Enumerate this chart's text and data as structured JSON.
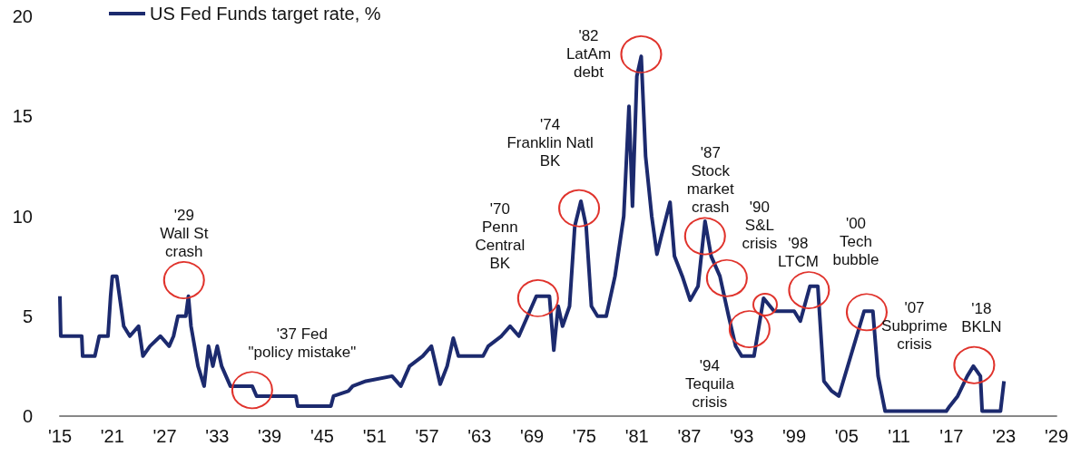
{
  "chart_data": {
    "type": "line",
    "legend": "top left",
    "grid": false,
    "marker": "none",
    "line_style": "solid",
    "xlim": [
      1915,
      2029
    ],
    "xticks": [
      {
        "value": 1915,
        "label": "'15"
      },
      {
        "value": 1921,
        "label": "'21"
      },
      {
        "value": 1927,
        "label": "'27"
      },
      {
        "value": 1933,
        "label": "'33"
      },
      {
        "value": 1939,
        "label": "'39"
      },
      {
        "value": 1945,
        "label": "'45"
      },
      {
        "value": 1951,
        "label": "'51"
      },
      {
        "value": 1957,
        "label": "'57"
      },
      {
        "value": 1963,
        "label": "'63"
      },
      {
        "value": 1969,
        "label": "'69"
      },
      {
        "value": 1975,
        "label": "'75"
      },
      {
        "value": 1981,
        "label": "'81"
      },
      {
        "value": 1987,
        "label": "'87"
      },
      {
        "value": 1993,
        "label": "'93"
      },
      {
        "value": 1999,
        "label": "'99"
      },
      {
        "value": 2005,
        "label": "'05"
      },
      {
        "value": 2011,
        "label": "'11"
      },
      {
        "value": 2017,
        "label": "'17"
      },
      {
        "value": 2023,
        "label": "'23"
      },
      {
        "value": 2029,
        "label": "'29"
      }
    ],
    "ylim": [
      0,
      20
    ],
    "yticks": [
      0,
      5,
      10,
      15,
      20
    ],
    "series": [
      {
        "name": "US Fed Funds target rate, %",
        "color": "#1c2a6e",
        "x": [
          1915,
          1915.1,
          1917.5,
          1917.6,
          1919,
          1919.5,
          1920.5,
          1920.8,
          1921,
          1921.5,
          1922.3,
          1923,
          1924,
          1924.5,
          1925.3,
          1926.5,
          1927.5,
          1928,
          1928.5,
          1929.4,
          1929.7,
          1930,
          1930.8,
          1931.5,
          1932,
          1932.5,
          1933,
          1933.5,
          1934.5,
          1937,
          1937.5,
          1942,
          1942.2,
          1946,
          1946.3,
          1948,
          1948.5,
          1950,
          1953,
          1954,
          1955,
          1956.5,
          1957.5,
          1958.5,
          1959.3,
          1960,
          1960.6,
          1963.4,
          1964,
          1965.5,
          1966.5,
          1967.5,
          1968.5,
          1969.5,
          1971,
          1971.5,
          1972,
          1972.5,
          1973.3,
          1973.9,
          1974.6,
          1975.2,
          1975.8,
          1976.5,
          1977.5,
          1978.5,
          1979.5,
          1980.1,
          1980.5,
          1981,
          1981.5,
          1982,
          1982.7,
          1983.3,
          1983.8,
          1984.8,
          1985.3,
          1986.2,
          1987.1,
          1988,
          1988.8,
          1989.5,
          1990.5,
          1991.5,
          1992.3,
          1993,
          1994.4,
          1995.5,
          1996.7,
          1999,
          1999.7,
          2000.8,
          2001.7,
          2002.4,
          2003.3,
          2004.1,
          2007,
          2008,
          2008.6,
          2009.4,
          2016.4,
          2016.8,
          2017.7,
          2018.8,
          2019.5,
          2020.3,
          2020.5,
          2022.6,
          2023
        ],
        "values": [
          6,
          4,
          4,
          3,
          3,
          4,
          4,
          6,
          7,
          7,
          4.5,
          4,
          4.5,
          3,
          3.5,
          4,
          3.5,
          4,
          5,
          5,
          6,
          4.5,
          2.5,
          1.5,
          3.5,
          2.5,
          3.5,
          2.5,
          1.5,
          1.5,
          1,
          1,
          0.5,
          0.5,
          1,
          1.25,
          1.5,
          1.75,
          2,
          1.5,
          2.5,
          3,
          3.5,
          1.6,
          2.5,
          3.9,
          3,
          3,
          3.5,
          4,
          4.5,
          4,
          5,
          6,
          6,
          3.3,
          5.5,
          4.5,
          5.5,
          9.5,
          10.75,
          9.5,
          5.5,
          5,
          5,
          7,
          10,
          15.5,
          10.5,
          17,
          18,
          13,
          10,
          8.1,
          9,
          10.7,
          8,
          7,
          5.8,
          6.5,
          9.75,
          8,
          7,
          5,
          3.5,
          3,
          3,
          5.9,
          5.25,
          5.25,
          4.75,
          6.5,
          6.5,
          1.75,
          1.25,
          1,
          5.25,
          5.25,
          2,
          0.25,
          0.25,
          0.5,
          1,
          2,
          2.5,
          2,
          0.25,
          0.25,
          1.75
        ]
      }
    ],
    "annotations": [
      {
        "text": "'29\nWall St\ncrash",
        "x": 1929.2,
        "y": 6.8
      },
      {
        "text": "'37 Fed\n\"policy mistake\"",
        "x": 1937,
        "y": 1.3
      },
      {
        "text": "'70\nPenn\nCentral\nBK",
        "x": 1969.7,
        "y": 5.9
      },
      {
        "text": "'74\nFranklin Natl\nBK",
        "x": 1974.4,
        "y": 10.4
      },
      {
        "text": "'82\nLatAm\ndebt",
        "x": 1981.5,
        "y": 18.1
      },
      {
        "text": "'87\nStock\nmarket\ncrash",
        "x": 1988.8,
        "y": 9
      },
      {
        "text": "'90\nS&L\ncrisis",
        "x": 1991.3,
        "y": 6.9
      },
      {
        "text": "'94\nTequila\ncrisis",
        "x": 1993.9,
        "y": 4.35
      },
      {
        "text": "'98\nLTCM",
        "x": 2000.7,
        "y": 6.3
      },
      {
        "text": "'00\nTech\nbubble",
        "x": 2007.3,
        "y": 5.2
      },
      {
        "text": "'07\nSubprime\ncrisis",
        "x": 2008.6,
        "y": 2
      },
      {
        "text": "'18\nBKLN",
        "x": 2019.6,
        "y": 2.55
      }
    ]
  }
}
